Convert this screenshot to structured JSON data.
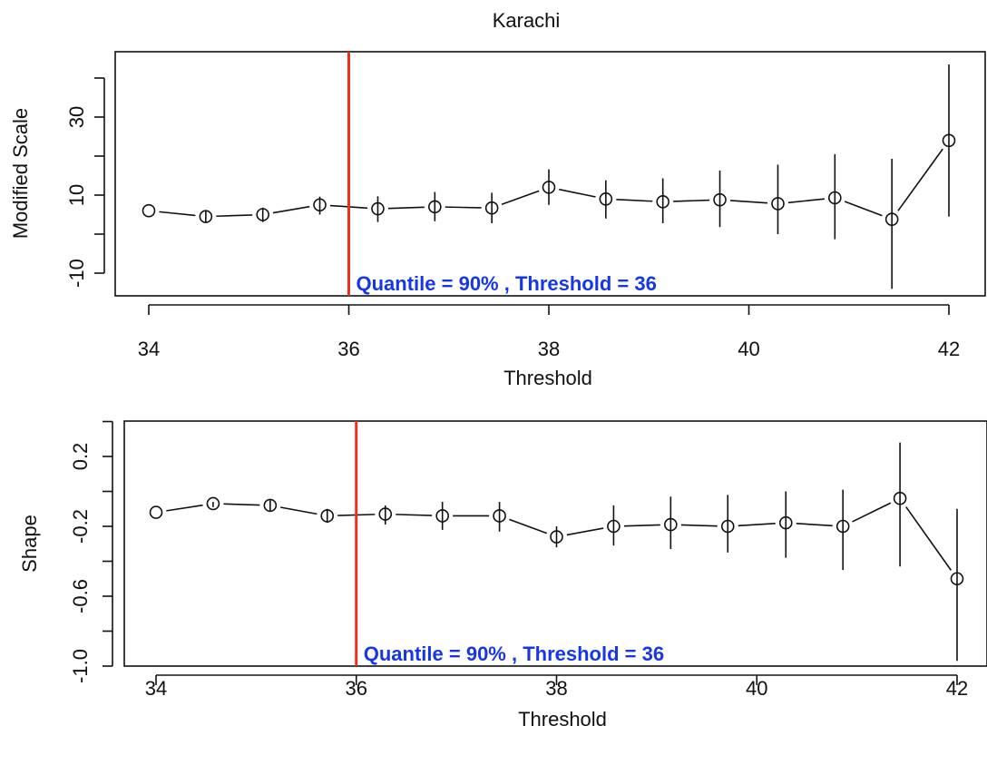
{
  "colors": {
    "threshold_line": "#e8321e",
    "annotation": "#1736e6",
    "points": "#111111"
  },
  "chart_data": [
    {
      "type": "scatter",
      "title": "Karachi",
      "xlabel": "Threshold",
      "ylabel": "Modified Scale",
      "xlim": [
        34,
        42
      ],
      "ylim": [
        -15,
        48
      ],
      "xticks": [
        34,
        36,
        38,
        40,
        42
      ],
      "yticks": [
        -10,
        10,
        30
      ],
      "grid": false,
      "series": [
        {
          "x": [
            34,
            34.57,
            35.14,
            35.71,
            36.29,
            36.86,
            37.43,
            38,
            38.57,
            39.14,
            39.71,
            40.29,
            40.86,
            41.43,
            42
          ],
          "y": [
            6,
            4.5,
            5,
            7.5,
            6.5,
            7,
            6.7,
            12,
            9,
            8.3,
            8.8,
            7.8,
            9.3,
            3.8,
            24
          ],
          "lower": [
            6,
            3.1,
            3.1,
            5,
            3.1,
            3.3,
            2.8,
            7.5,
            4,
            2.8,
            1.8,
            0,
            -1.3,
            -14,
            4.5
          ],
          "upper": [
            6,
            5.8,
            6.8,
            9.6,
            9.7,
            10.8,
            10.6,
            16.6,
            13.8,
            14.3,
            16.3,
            17.8,
            20.5,
            19.3,
            43.5
          ]
        }
      ],
      "reference_line": {
        "x": 36
      },
      "annotation": "Quantile = 90% , Threshold = 36"
    },
    {
      "type": "scatter",
      "title": "",
      "xlabel": "Threshold",
      "ylabel": "Shape",
      "xlim": [
        34,
        42
      ],
      "ylim": [
        -1.0,
        0.35
      ],
      "xticks": [
        34,
        36,
        38,
        40,
        42
      ],
      "yticks": [
        -1.0,
        -0.6,
        -0.2,
        0.2
      ],
      "grid": false,
      "series": [
        {
          "x": [
            34,
            34.57,
            35.14,
            35.71,
            36.29,
            36.86,
            37.43,
            38,
            38.57,
            39.14,
            39.71,
            40.29,
            40.86,
            41.43,
            42
          ],
          "y": [
            -0.12,
            -0.07,
            -0.08,
            -0.14,
            -0.13,
            -0.14,
            -0.14,
            -0.26,
            -0.2,
            -0.19,
            -0.2,
            -0.18,
            -0.2,
            -0.04,
            -0.5
          ],
          "lower": [
            -0.12,
            -0.09,
            -0.11,
            -0.18,
            -0.19,
            -0.22,
            -0.23,
            -0.32,
            -0.31,
            -0.33,
            -0.35,
            -0.38,
            -0.45,
            -0.43,
            -0.97
          ],
          "upper": [
            -0.12,
            -0.06,
            -0.05,
            -0.1,
            -0.08,
            -0.06,
            -0.06,
            -0.2,
            -0.08,
            -0.03,
            -0.02,
            0.0,
            0.01,
            0.28,
            -0.1
          ]
        }
      ],
      "reference_line": {
        "x": 36
      },
      "annotation": "Quantile = 90% , Threshold = 36"
    }
  ]
}
